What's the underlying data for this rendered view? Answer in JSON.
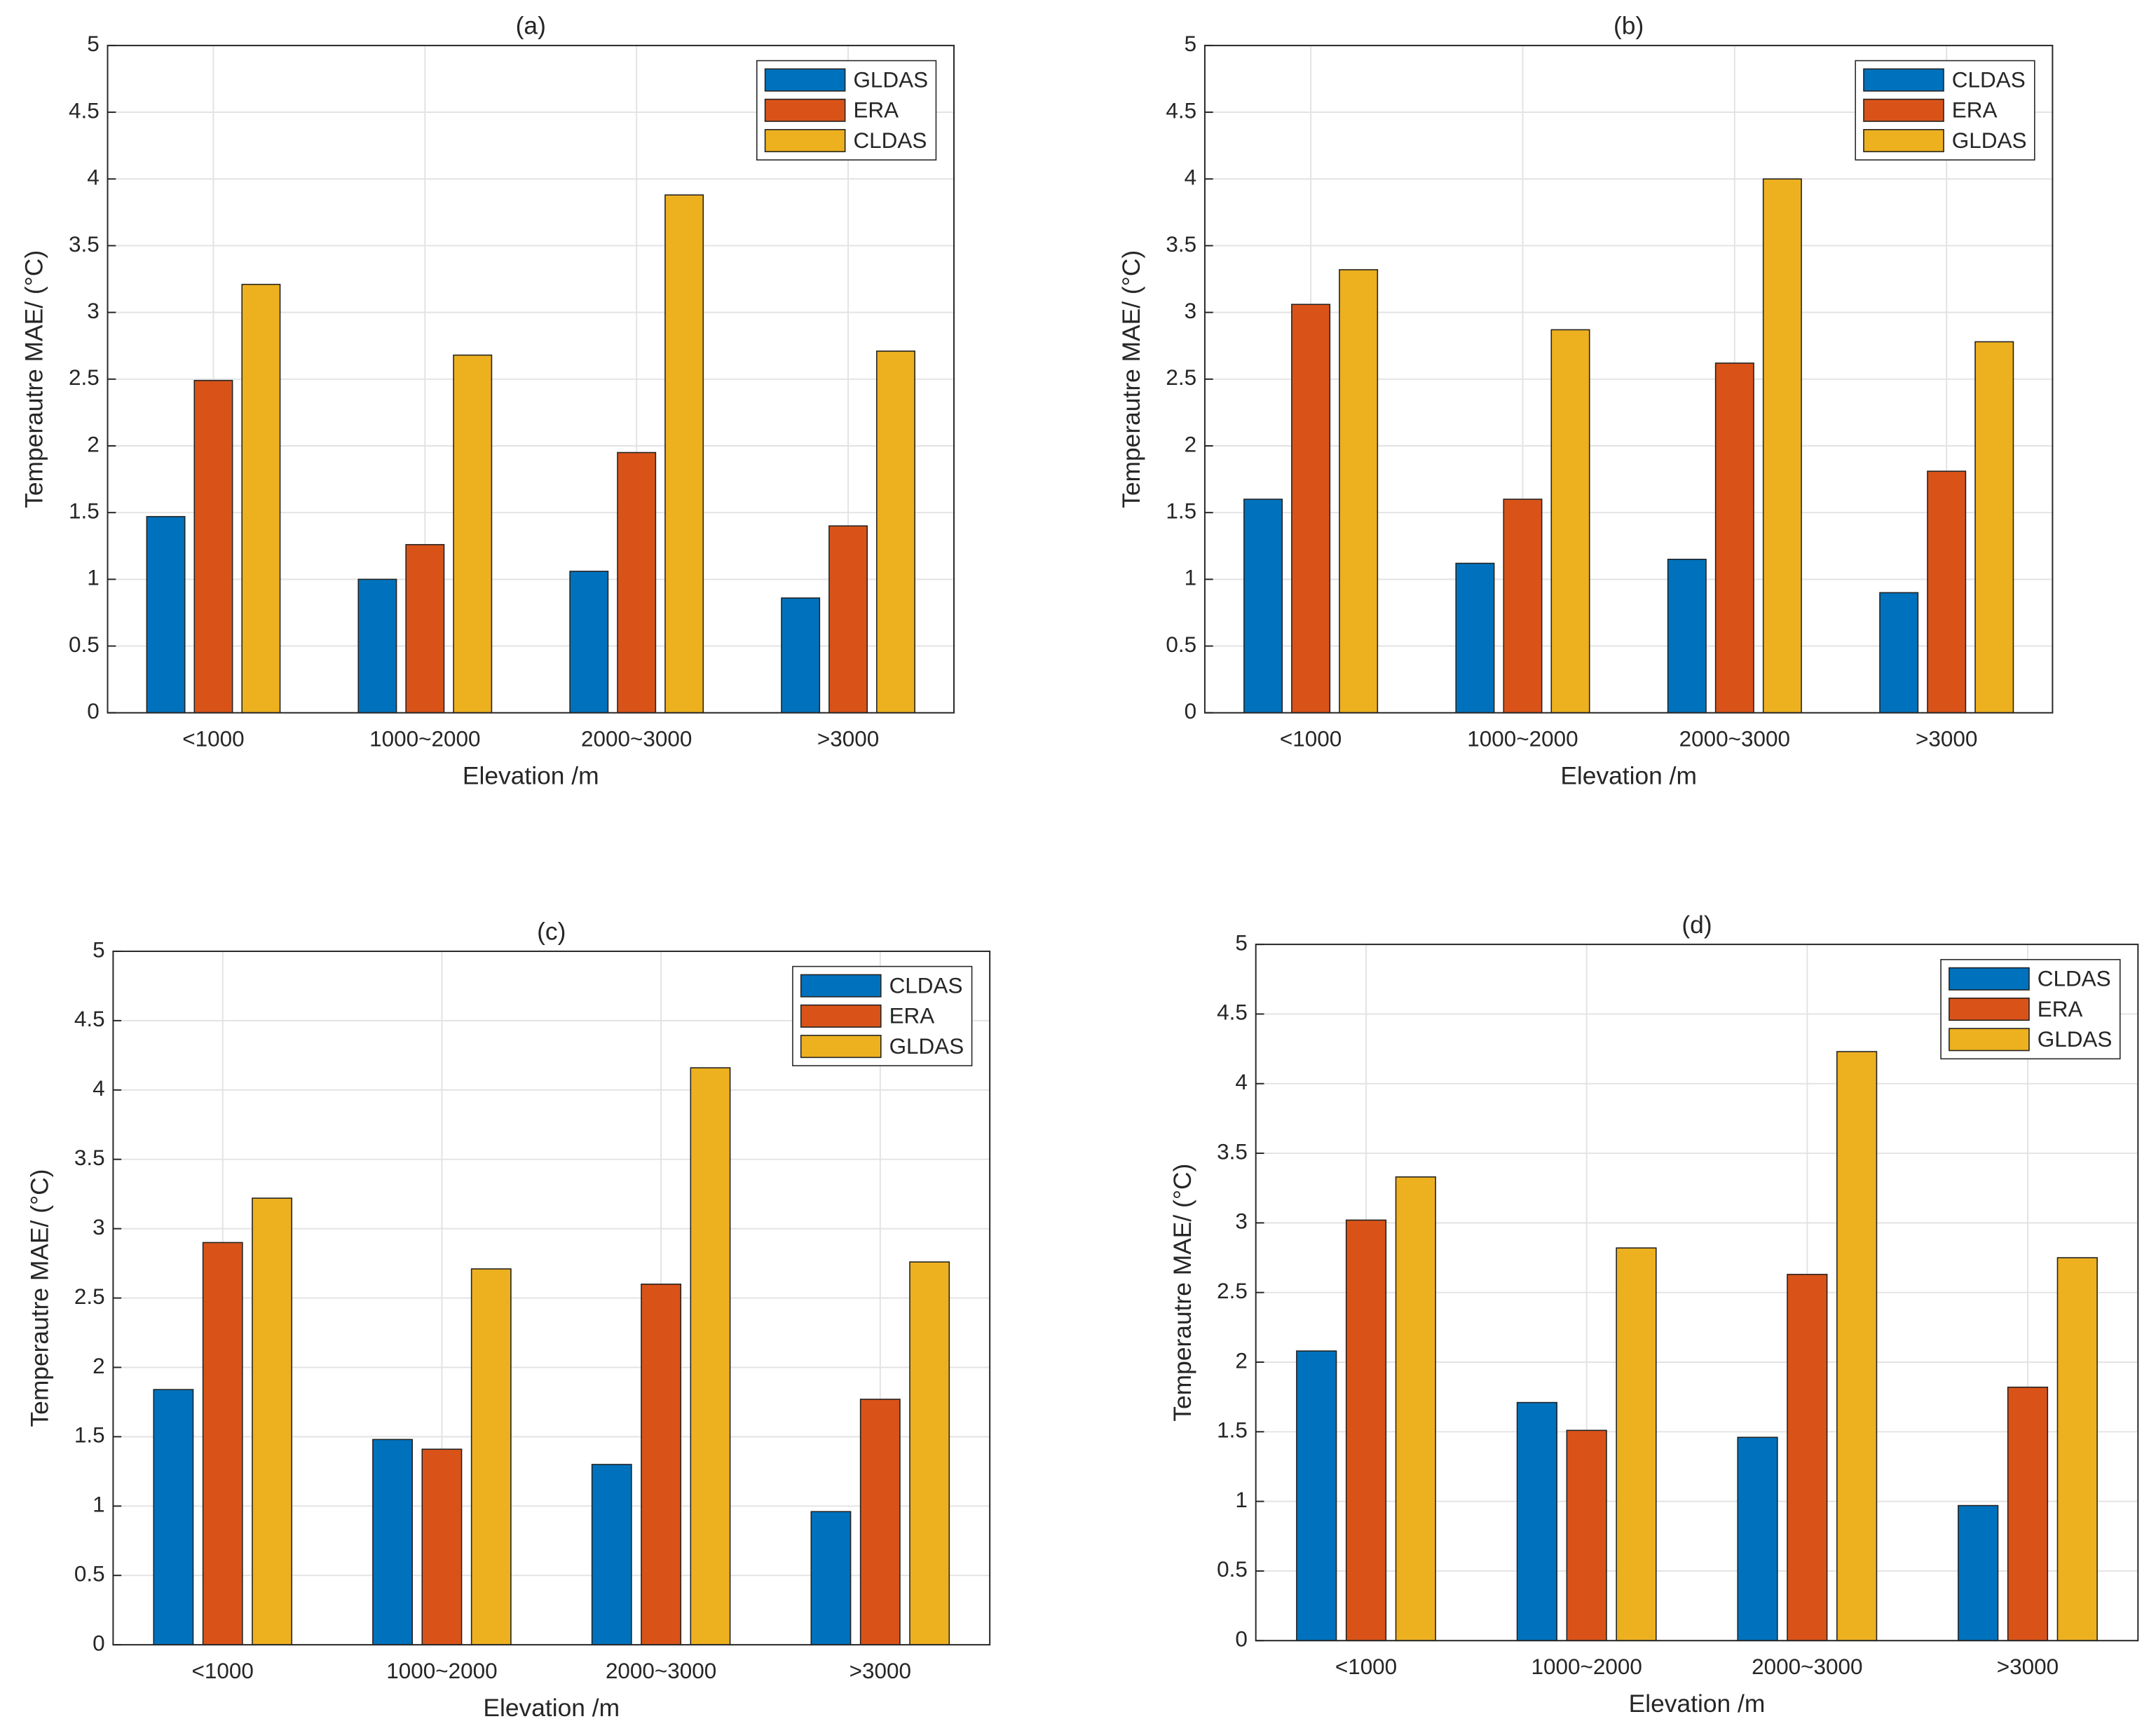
{
  "chart_data": [
    {
      "type": "bar",
      "title": "(a)",
      "xlabel": "Elevation /m",
      "ylabel": "Temperautre MAE/ (°C)",
      "categories": [
        "<1000",
        "1000~2000",
        "2000~3000",
        ">3000"
      ],
      "series": [
        {
          "name": "GLDAS",
          "color": "#0072bd",
          "values": [
            1.47,
            1.0,
            1.06,
            0.86
          ]
        },
        {
          "name": "ERA",
          "color": "#d95319",
          "values": [
            2.49,
            1.26,
            1.95,
            1.4
          ]
        },
        {
          "name": "CLDAS",
          "color": "#edb120",
          "values": [
            3.21,
            2.68,
            3.88,
            2.71
          ]
        }
      ],
      "ylim": [
        0,
        5
      ],
      "yticks": [
        0,
        0.5,
        1,
        1.5,
        2,
        2.5,
        3,
        3.5,
        4,
        4.5,
        5
      ],
      "grid": true,
      "legend": "top-right"
    },
    {
      "type": "bar",
      "title": "(b)",
      "xlabel": "Elevation /m",
      "ylabel": "Temperautre MAE/ (°C)",
      "categories": [
        "<1000",
        "1000~2000",
        "2000~3000",
        ">3000"
      ],
      "series": [
        {
          "name": "CLDAS",
          "color": "#0072bd",
          "values": [
            1.6,
            1.12,
            1.15,
            0.9
          ]
        },
        {
          "name": "ERA",
          "color": "#d95319",
          "values": [
            3.06,
            1.6,
            2.62,
            1.81
          ]
        },
        {
          "name": "GLDAS",
          "color": "#edb120",
          "values": [
            3.32,
            2.87,
            4.0,
            2.78
          ]
        }
      ],
      "ylim": [
        0,
        5
      ],
      "yticks": [
        0,
        0.5,
        1,
        1.5,
        2,
        2.5,
        3,
        3.5,
        4,
        4.5,
        5
      ],
      "grid": true,
      "legend": "top-right"
    },
    {
      "type": "bar",
      "title": "(c)",
      "xlabel": "Elevation /m",
      "ylabel": "Temperautre MAE/ (°C)",
      "categories": [
        "<1000",
        "1000~2000",
        "2000~3000",
        ">3000"
      ],
      "series": [
        {
          "name": "CLDAS",
          "color": "#0072bd",
          "values": [
            1.84,
            1.48,
            1.3,
            0.96
          ]
        },
        {
          "name": "ERA",
          "color": "#d95319",
          "values": [
            2.9,
            1.41,
            2.6,
            1.77
          ]
        },
        {
          "name": "GLDAS",
          "color": "#edb120",
          "values": [
            3.22,
            2.71,
            4.16,
            2.76
          ]
        }
      ],
      "ylim": [
        0,
        5
      ],
      "yticks": [
        0,
        0.5,
        1,
        1.5,
        2,
        2.5,
        3,
        3.5,
        4,
        4.5,
        5
      ],
      "grid": true,
      "legend": "top-right"
    },
    {
      "type": "bar",
      "title": "(d)",
      "xlabel": "Elevation /m",
      "ylabel": "Temperautre MAE/ (°C)",
      "categories": [
        "<1000",
        "1000~2000",
        "2000~3000",
        ">3000"
      ],
      "series": [
        {
          "name": "CLDAS",
          "color": "#0072bd",
          "values": [
            2.08,
            1.71,
            1.46,
            0.97
          ]
        },
        {
          "name": "ERA",
          "color": "#d95319",
          "values": [
            3.02,
            1.51,
            2.63,
            1.82
          ]
        },
        {
          "name": "GLDAS",
          "color": "#edb120",
          "values": [
            3.33,
            2.82,
            4.23,
            2.75
          ]
        }
      ],
      "ylim": [
        0,
        5
      ],
      "yticks": [
        0,
        0.5,
        1,
        1.5,
        2,
        2.5,
        3,
        3.5,
        4,
        4.5,
        5
      ],
      "grid": true,
      "legend": "top-right"
    }
  ]
}
